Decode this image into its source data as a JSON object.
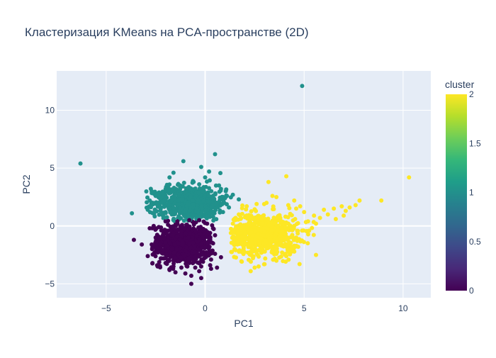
{
  "title": "Кластеризация KMeans на PCA-пространстве (2D)",
  "chart_data": {
    "type": "scatter",
    "title": "Кластеризация KMeans на PCA-пространстве (2D)",
    "xlabel": "PC1",
    "ylabel": "PC2",
    "xlim": [
      -7.5,
      11.4
    ],
    "ylim": [
      -6.2,
      13.4
    ],
    "x_ticks": [
      -5,
      0,
      5,
      10
    ],
    "y_ticks": [
      -5,
      0,
      5,
      10
    ],
    "x_tick_labels": [
      "−5",
      "0",
      "5",
      "10"
    ],
    "y_tick_labels": [
      "−5",
      "0",
      "5",
      "10"
    ],
    "grid": true,
    "plot_background": "#E5ECF6",
    "colorbar": {
      "title": "cluster",
      "range": [
        0,
        2
      ],
      "ticks": [
        0,
        0.5,
        1,
        1.5,
        2
      ],
      "tick_labels": [
        "0",
        "0.5",
        "1",
        "1.5",
        "2"
      ],
      "colorscale": [
        "#440154",
        "#482878",
        "#3e4989",
        "#31688e",
        "#26828e",
        "#1f9e89",
        "#35b779",
        "#6ece58",
        "#b5de2b",
        "#fde725"
      ]
    },
    "cluster_colors": {
      "0": "#440154",
      "1": "#21918c",
      "2": "#fde725"
    },
    "series": [
      {
        "cluster": 0,
        "color": "#440154",
        "points": [
          [
            -2.6,
            0.0
          ],
          [
            -2.8,
            -0.2
          ],
          [
            -2.5,
            -1.0
          ],
          [
            -2.7,
            -1.6
          ],
          [
            -2.4,
            -2.2
          ],
          [
            -2.2,
            -2.8
          ],
          [
            -2.0,
            -3.2
          ],
          [
            -1.6,
            -3.5
          ],
          [
            -1.2,
            -3.6
          ],
          [
            -0.9,
            -3.5
          ],
          [
            -0.5,
            -3.6
          ],
          [
            -0.2,
            -3.5
          ],
          [
            0.3,
            -2.9
          ],
          [
            0.5,
            -2.4
          ],
          [
            0.4,
            -1.5
          ],
          [
            0.5,
            -0.8
          ],
          [
            0.4,
            -0.2
          ],
          [
            0.1,
            0.2
          ],
          [
            -0.3,
            0.5
          ],
          [
            -0.8,
            0.5
          ],
          [
            -1.4,
            0.4
          ],
          [
            -2.0,
            0.4
          ],
          [
            -3.6,
            -1.2
          ],
          [
            -3.2,
            -1.6
          ],
          [
            -2.9,
            -2.6
          ],
          [
            -1.8,
            -3.8
          ],
          [
            -1.0,
            -4.1
          ],
          [
            -0.3,
            -3.9
          ],
          [
            0.3,
            -3.7
          ],
          [
            -0.7,
            -4.3
          ],
          [
            -0.2,
            -4.5
          ],
          [
            0.6,
            -3.6
          ],
          [
            0.8,
            -2.7
          ],
          [
            -0.7,
            -5.0
          ],
          [
            -1.5,
            -4.0
          ],
          [
            -2.4,
            -3.5
          ]
        ]
      },
      {
        "cluster": 1,
        "color": "#21918c",
        "points": [
          [
            -6.3,
            5.4
          ],
          [
            -3.7,
            1.1
          ],
          [
            4.9,
            12.1
          ],
          [
            0.5,
            6.2
          ],
          [
            -1.1,
            5.6
          ],
          [
            -1.6,
            4.6
          ],
          [
            -1.8,
            4.2
          ],
          [
            -2.7,
            3.0
          ],
          [
            -2.4,
            2.8
          ],
          [
            -2.8,
            2.2
          ],
          [
            -2.9,
            1.4
          ],
          [
            -2.5,
            1.3
          ],
          [
            0.8,
            3.2
          ],
          [
            1.0,
            2.4
          ],
          [
            0.6,
            2.0
          ],
          [
            1.1,
            2.6
          ],
          [
            0.2,
            4.7
          ],
          [
            -0.3,
            3.6
          ],
          [
            -0.1,
            3.2
          ],
          [
            -0.6,
            3.8
          ],
          [
            0.0,
            4.2
          ],
          [
            -0.2,
            5.1
          ],
          [
            0.9,
            1.2
          ],
          [
            1.2,
            1.6
          ],
          [
            1.7,
            2.3
          ],
          [
            1.4,
            2.7
          ],
          [
            0.7,
            3.5
          ],
          [
            -2.1,
            0.8
          ],
          [
            -2.2,
            1.0
          ]
        ]
      },
      {
        "cluster": 2,
        "color": "#fde725",
        "points": [
          [
            10.3,
            4.2
          ],
          [
            8.9,
            2.2
          ],
          [
            7.8,
            2.2
          ],
          [
            7.6,
            1.8
          ],
          [
            7.3,
            1.6
          ],
          [
            7.1,
            1.3
          ],
          [
            6.9,
            1.7
          ],
          [
            6.5,
            1.5
          ],
          [
            6.2,
            1.0
          ],
          [
            6.0,
            1.4
          ],
          [
            5.8,
            0.7
          ],
          [
            5.5,
            0.9
          ],
          [
            5.2,
            0.4
          ],
          [
            5.6,
            0.2
          ],
          [
            6.6,
            0.6
          ],
          [
            7.0,
            0.9
          ],
          [
            5.6,
            -2.5
          ],
          [
            4.7,
            -1.8
          ],
          [
            4.4,
            -2.2
          ],
          [
            4.1,
            -2.6
          ],
          [
            3.6,
            -3.0
          ],
          [
            3.0,
            -3.3
          ],
          [
            2.5,
            -3.6
          ],
          [
            2.3,
            -3.9
          ],
          [
            2.7,
            -3.5
          ],
          [
            1.6,
            -1.5
          ],
          [
            1.3,
            -0.6
          ],
          [
            1.4,
            0.2
          ],
          [
            1.7,
            1.0
          ],
          [
            2.1,
            1.7
          ],
          [
            2.6,
            1.9
          ],
          [
            3.1,
            2.0
          ],
          [
            3.4,
            2.6
          ],
          [
            3.2,
            3.8
          ],
          [
            4.1,
            4.3
          ],
          [
            3.6,
            2.5
          ],
          [
            4.2,
            1.8
          ],
          [
            4.6,
            1.5
          ],
          [
            5.0,
            1.2
          ],
          [
            4.9,
            -0.4
          ],
          [
            4.6,
            -1.0
          ],
          [
            4.8,
            1.7
          ],
          [
            4.5,
            2.2
          ],
          [
            1.5,
            0.5
          ],
          [
            1.9,
            -2.3
          ],
          [
            3.6,
            -2.4
          ]
        ]
      }
    ],
    "clouds": [
      {
        "cluster": 0,
        "cx": -1.1,
        "cy": -1.6,
        "sx": 0.75,
        "sy": 0.85,
        "xclip": [
          -2.7,
          0.45
        ],
        "yclip": [
          -3.9,
          0.45
        ],
        "n": 750
      },
      {
        "cluster": 1,
        "cx": -0.8,
        "cy": 2.0,
        "sx": 0.95,
        "sy": 0.75,
        "xclip": [
          -3.0,
          1.3
        ],
        "yclip": [
          0.45,
          4.7
        ],
        "n": 650
      },
      {
        "cluster": 2,
        "cx": 2.9,
        "cy": -0.7,
        "sx": 0.9,
        "sy": 0.9,
        "xclip": [
          1.3,
          6.0
        ],
        "yclip": [
          -3.8,
          2.4
        ],
        "n": 700
      }
    ]
  }
}
